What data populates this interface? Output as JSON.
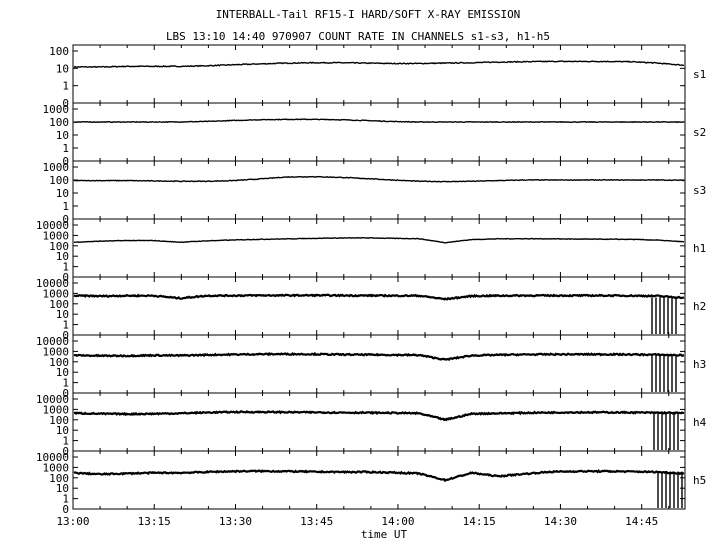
{
  "chart_data": {
    "type": "line",
    "title": "INTERBALL-Tail RF15-I HARD/SOFT X-RAY EMISSION",
    "subtitle": "LBS 13:10 14:40 970907  COUNT RATE IN CHANNELS s1-s3, h1-h5",
    "xlabel": "time UT",
    "x_ticks": [
      "13:00",
      "13:15",
      "13:30",
      "13:45",
      "14:00",
      "14:15",
      "14:30",
      "14:45"
    ],
    "x_range_minutes": [
      780,
      893
    ],
    "y_scale": "log",
    "color": "#000000",
    "panels": [
      {
        "name": "s1",
        "ytick_labels": [
          "100",
          "10",
          "1",
          "0"
        ],
        "samples": [
          12,
          12,
          13,
          13,
          13,
          14,
          16,
          18,
          20,
          21,
          21,
          20,
          19,
          19,
          20,
          21,
          23,
          24,
          25,
          25,
          25,
          24,
          20,
          15
        ]
      },
      {
        "name": "s2",
        "ytick_labels": [
          "1000",
          "100",
          "10",
          "1",
          "0"
        ],
        "samples": [
          100,
          100,
          100,
          100,
          102,
          110,
          130,
          150,
          160,
          160,
          150,
          130,
          110,
          100,
          100,
          100,
          100,
          100,
          100,
          100,
          100,
          100,
          100,
          98
        ]
      },
      {
        "name": "s3",
        "ytick_labels": [
          "1000",
          "100",
          "10",
          "1",
          "0"
        ],
        "samples": [
          90,
          90,
          90,
          85,
          80,
          80,
          90,
          120,
          170,
          180,
          160,
          130,
          100,
          80,
          75,
          80,
          90,
          100,
          100,
          100,
          100,
          100,
          100,
          95
        ]
      },
      {
        "name": "h1",
        "ytick_labels": [
          "10000",
          "1000",
          "100",
          "10",
          "1",
          "0"
        ],
        "samples": [
          220,
          280,
          320,
          320,
          220,
          300,
          360,
          420,
          460,
          520,
          560,
          580,
          520,
          480,
          200,
          400,
          470,
          480,
          470,
          440,
          430,
          420,
          350,
          240
        ]
      },
      {
        "name": "h2",
        "ytick_labels": [
          "10000",
          "1000",
          "100",
          "10",
          "1",
          "0"
        ],
        "samples": [
          600,
          550,
          600,
          600,
          340,
          600,
          620,
          640,
          640,
          650,
          630,
          620,
          600,
          600,
          280,
          560,
          600,
          620,
          620,
          620,
          620,
          600,
          560,
          380
        ]
      },
      {
        "name": "h3",
        "ytick_labels": [
          "10000",
          "1000",
          "100",
          "10",
          "1",
          "0"
        ],
        "samples": [
          420,
          380,
          380,
          420,
          400,
          460,
          500,
          540,
          560,
          540,
          500,
          480,
          460,
          440,
          160,
          400,
          460,
          500,
          520,
          520,
          520,
          500,
          480,
          420
        ]
      },
      {
        "name": "h4",
        "ytick_labels": [
          "10000",
          "1000",
          "100",
          "10",
          "1",
          "0"
        ],
        "samples": [
          440,
          380,
          360,
          380,
          420,
          500,
          560,
          560,
          540,
          520,
          500,
          480,
          460,
          420,
          100,
          380,
          420,
          460,
          500,
          520,
          520,
          500,
          480,
          440
        ]
      },
      {
        "name": "h5",
        "ytick_labels": [
          "10000",
          "1000",
          "100",
          "10",
          "1",
          "0"
        ],
        "samples": [
          300,
          220,
          260,
          300,
          300,
          360,
          420,
          440,
          420,
          380,
          360,
          360,
          320,
          260,
          60,
          300,
          140,
          240,
          380,
          420,
          420,
          400,
          360,
          260
        ]
      }
    ]
  }
}
